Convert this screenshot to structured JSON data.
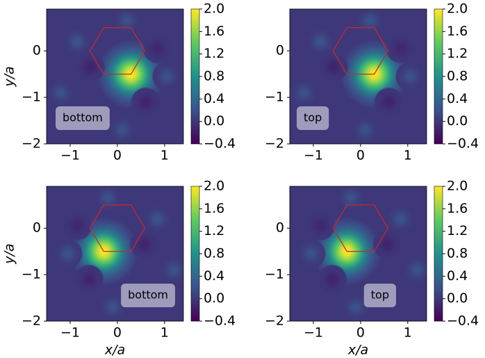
{
  "chart_data": [
    {
      "type": "contour",
      "ylabel": "y/a",
      "annotation": "bottom",
      "xlim": [
        -1.5,
        1.4
      ],
      "ylim": [
        -2,
        0.9
      ],
      "xticks": [
        {
          "value": -1,
          "label": "−1"
        },
        0,
        1
      ],
      "yticks": [
        {
          "value": -2,
          "label": "−2"
        },
        {
          "value": -1,
          "label": "−1"
        },
        0
      ],
      "clim": [
        -0.4,
        2.0
      ],
      "cticks": [
        {
          "value": -0.4,
          "label": "−0.4"
        },
        {
          "value": 0,
          "label": "0.0"
        },
        {
          "value": 0.4,
          "label": "0.4"
        },
        {
          "value": 0.8,
          "label": "0.8"
        },
        {
          "value": 1.2,
          "label": "1.2"
        },
        {
          "value": 1.6,
          "label": "1.6"
        },
        {
          "value": 2.0,
          "label": "2.0"
        }
      ],
      "hexagon": {
        "color": "#c8282d",
        "x": [
          -0.29,
          0.29,
          0.58,
          0.29,
          -0.29,
          -0.58
        ],
        "y": [
          0.5,
          0.5,
          0,
          -0.5,
          -0.5,
          0
        ]
      },
      "lobes": {
        "x": [
          0.29,
          -0.57,
          0.6,
          0.85,
          -0.85,
          0.2,
          1.05,
          -1.2,
          0.1
        ],
        "y": [
          -0.5,
          -0.35,
          -1.1,
          0.05,
          0.2,
          0.65,
          -0.55,
          -0.9,
          -1.7
        ],
        "values": [
          2.0,
          -0.15,
          -0.15,
          -0.12,
          0.22,
          0.2,
          0.2,
          0.2,
          0.2
        ]
      }
    },
    {
      "type": "contour",
      "annotation": "top",
      "xlim": [
        -1.5,
        1.4
      ],
      "ylim": [
        -2,
        0.9
      ],
      "xticks": [
        {
          "value": -1,
          "label": "−1"
        },
        0,
        1
      ],
      "yticks": [
        {
          "value": -2,
          "label": "−2"
        },
        {
          "value": -1,
          "label": "−1"
        },
        0
      ],
      "clim": [
        -0.4,
        2.0
      ],
      "cticks": [
        {
          "value": -0.4,
          "label": "−0.4"
        },
        {
          "value": 0,
          "label": "0.0"
        },
        {
          "value": 0.4,
          "label": "0.4"
        },
        {
          "value": 0.8,
          "label": "0.8"
        },
        {
          "value": 1.2,
          "label": "1.2"
        },
        {
          "value": 1.6,
          "label": "1.6"
        },
        {
          "value": 2.0,
          "label": "2.0"
        }
      ],
      "hexagon": {
        "color": "#c8282d",
        "x": [
          -0.29,
          0.29,
          0.58,
          0.29,
          -0.29,
          -0.58
        ],
        "y": [
          0.5,
          0.5,
          0,
          -0.5,
          -0.5,
          0
        ]
      },
      "lobes": {
        "x": [
          0.29,
          -0.57,
          0.6,
          0.85,
          -0.85,
          0.2,
          1.05,
          -1.2,
          0.1
        ],
        "y": [
          -0.5,
          -0.35,
          -1.1,
          0.05,
          0.2,
          0.65,
          -0.55,
          -0.9,
          -1.7
        ],
        "values": [
          2.0,
          -0.15,
          -0.15,
          -0.12,
          0.22,
          0.2,
          0.2,
          0.2,
          0.2
        ]
      }
    },
    {
      "type": "contour",
      "xlabel": "x/a",
      "ylabel": "y/a",
      "annotation": "bottom",
      "xlim": [
        -1.5,
        1.4
      ],
      "ylim": [
        -2,
        0.9
      ],
      "xticks": [
        {
          "value": -1,
          "label": "−1"
        },
        0,
        1
      ],
      "yticks": [
        {
          "value": -2,
          "label": "−2"
        },
        {
          "value": -1,
          "label": "−1"
        },
        0
      ],
      "clim": [
        -0.4,
        2.0
      ],
      "cticks": [
        {
          "value": -0.4,
          "label": "−0.4"
        },
        {
          "value": 0,
          "label": "0.0"
        },
        {
          "value": 0.4,
          "label": "0.4"
        },
        {
          "value": 0.8,
          "label": "0.8"
        },
        {
          "value": 1.2,
          "label": "1.2"
        },
        {
          "value": 1.6,
          "label": "1.6"
        },
        {
          "value": 2.0,
          "label": "2.0"
        }
      ],
      "hexagon": {
        "color": "#c8282d",
        "x": [
          -0.29,
          0.29,
          0.58,
          0.29,
          -0.29,
          -0.58
        ],
        "y": [
          0.5,
          0.5,
          0,
          -0.5,
          -0.5,
          0
        ]
      },
      "lobes": {
        "x": [
          -0.29,
          0.57,
          -0.6,
          -0.85,
          0.85,
          -0.2,
          -1.05,
          1.2,
          -0.1
        ],
        "y": [
          -0.5,
          -0.35,
          -1.1,
          0.05,
          0.2,
          0.65,
          -0.55,
          -0.9,
          -1.7
        ],
        "values": [
          2.0,
          -0.15,
          -0.15,
          -0.12,
          0.22,
          0.2,
          0.2,
          0.2,
          0.2
        ]
      }
    },
    {
      "type": "contour",
      "xlabel": "x/a",
      "annotation": "top",
      "xlim": [
        -1.5,
        1.4
      ],
      "ylim": [
        -2,
        0.9
      ],
      "xticks": [
        {
          "value": -1,
          "label": "−1"
        },
        0,
        1
      ],
      "yticks": [
        {
          "value": -2,
          "label": "−2"
        },
        {
          "value": -1,
          "label": "−1"
        },
        0
      ],
      "clim": [
        -0.4,
        2.0
      ],
      "cticks": [
        {
          "value": -0.4,
          "label": "−0.4"
        },
        {
          "value": 0,
          "label": "0.0"
        },
        {
          "value": 0.4,
          "label": "0.4"
        },
        {
          "value": 0.8,
          "label": "0.8"
        },
        {
          "value": 1.2,
          "label": "1.2"
        },
        {
          "value": 1.6,
          "label": "1.6"
        },
        {
          "value": 2.0,
          "label": "2.0"
        }
      ],
      "hexagon": {
        "color": "#c8282d",
        "x": [
          -0.29,
          0.29,
          0.58,
          0.29,
          -0.29,
          -0.58
        ],
        "y": [
          0.5,
          0.5,
          0,
          -0.5,
          -0.5,
          0
        ]
      },
      "lobes": {
        "x": [
          -0.29,
          0.57,
          -0.6,
          -0.85,
          0.85,
          -0.2,
          -1.05,
          1.2,
          -0.1
        ],
        "y": [
          -0.5,
          -0.35,
          -1.1,
          0.05,
          0.2,
          0.65,
          -0.55,
          -0.9,
          -1.7
        ],
        "values": [
          2.0,
          -0.15,
          -0.15,
          -0.12,
          0.22,
          0.2,
          0.2,
          0.2,
          0.2
        ]
      }
    }
  ]
}
